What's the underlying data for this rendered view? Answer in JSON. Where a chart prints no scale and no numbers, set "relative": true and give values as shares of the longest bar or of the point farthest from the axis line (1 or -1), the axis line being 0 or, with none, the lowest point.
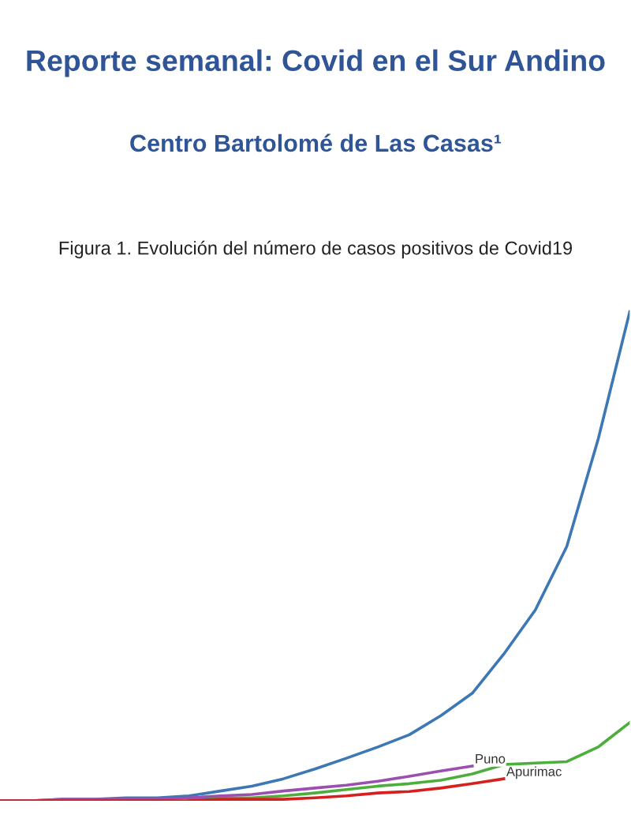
{
  "chart_data": {
    "type": "line",
    "title": "Reporte semanal: Covid en el Sur Andino",
    "subtitle": "Centro Bartolomé de Las Casas¹",
    "annotations": [
      "Figura 1. Evolución del número de casos positivos de Covid19"
    ],
    "relative": true,
    "categories": [
      null,
      null,
      null,
      null,
      null,
      null,
      null,
      null,
      null,
      null,
      null,
      null,
      null,
      null,
      null,
      null,
      null,
      null,
      null,
      null,
      null
    ],
    "series": [
      {
        "color": "#3c78b4",
        "values": [
          0,
          0,
          0.003,
          0.003,
          0.006,
          0.006,
          0.01,
          0.02,
          0.03,
          0.045,
          0.065,
          0.087,
          0.11,
          0.135,
          0.174,
          0.22,
          0.3,
          0.39,
          0.52,
          0.74,
          1
        ]
      },
      {
        "color": "#4caf3c",
        "values": [
          null,
          null,
          null,
          null,
          null,
          null,
          0.003,
          0.006,
          0.006,
          0.01,
          0.016,
          0.023,
          0.03,
          0.035,
          0.042,
          0.055,
          0.074,
          0.077,
          0.08,
          0.11,
          0.16
        ]
      },
      {
        "name": "Puno",
        "color": "#9b4fb0",
        "values": [
          0,
          0,
          0.003,
          0.003,
          0.003,
          0.003,
          0.006,
          0.01,
          0.013,
          0.02,
          0.026,
          0.032,
          0.04,
          0.05,
          0.061,
          0.071,
          null,
          null,
          null,
          null,
          null
        ]
      },
      {
        "name": "Apurimac",
        "color": "#d62020",
        "values": [
          0,
          0,
          0,
          0,
          0,
          0,
          0,
          0.003,
          0.003,
          0.003,
          0.006,
          0.01,
          0.016,
          0.019,
          0.026,
          0.035,
          0.045,
          null,
          null,
          null,
          null
        ]
      }
    ],
    "grid": false,
    "legend": false,
    "marker": "none",
    "line_style": "solid"
  }
}
